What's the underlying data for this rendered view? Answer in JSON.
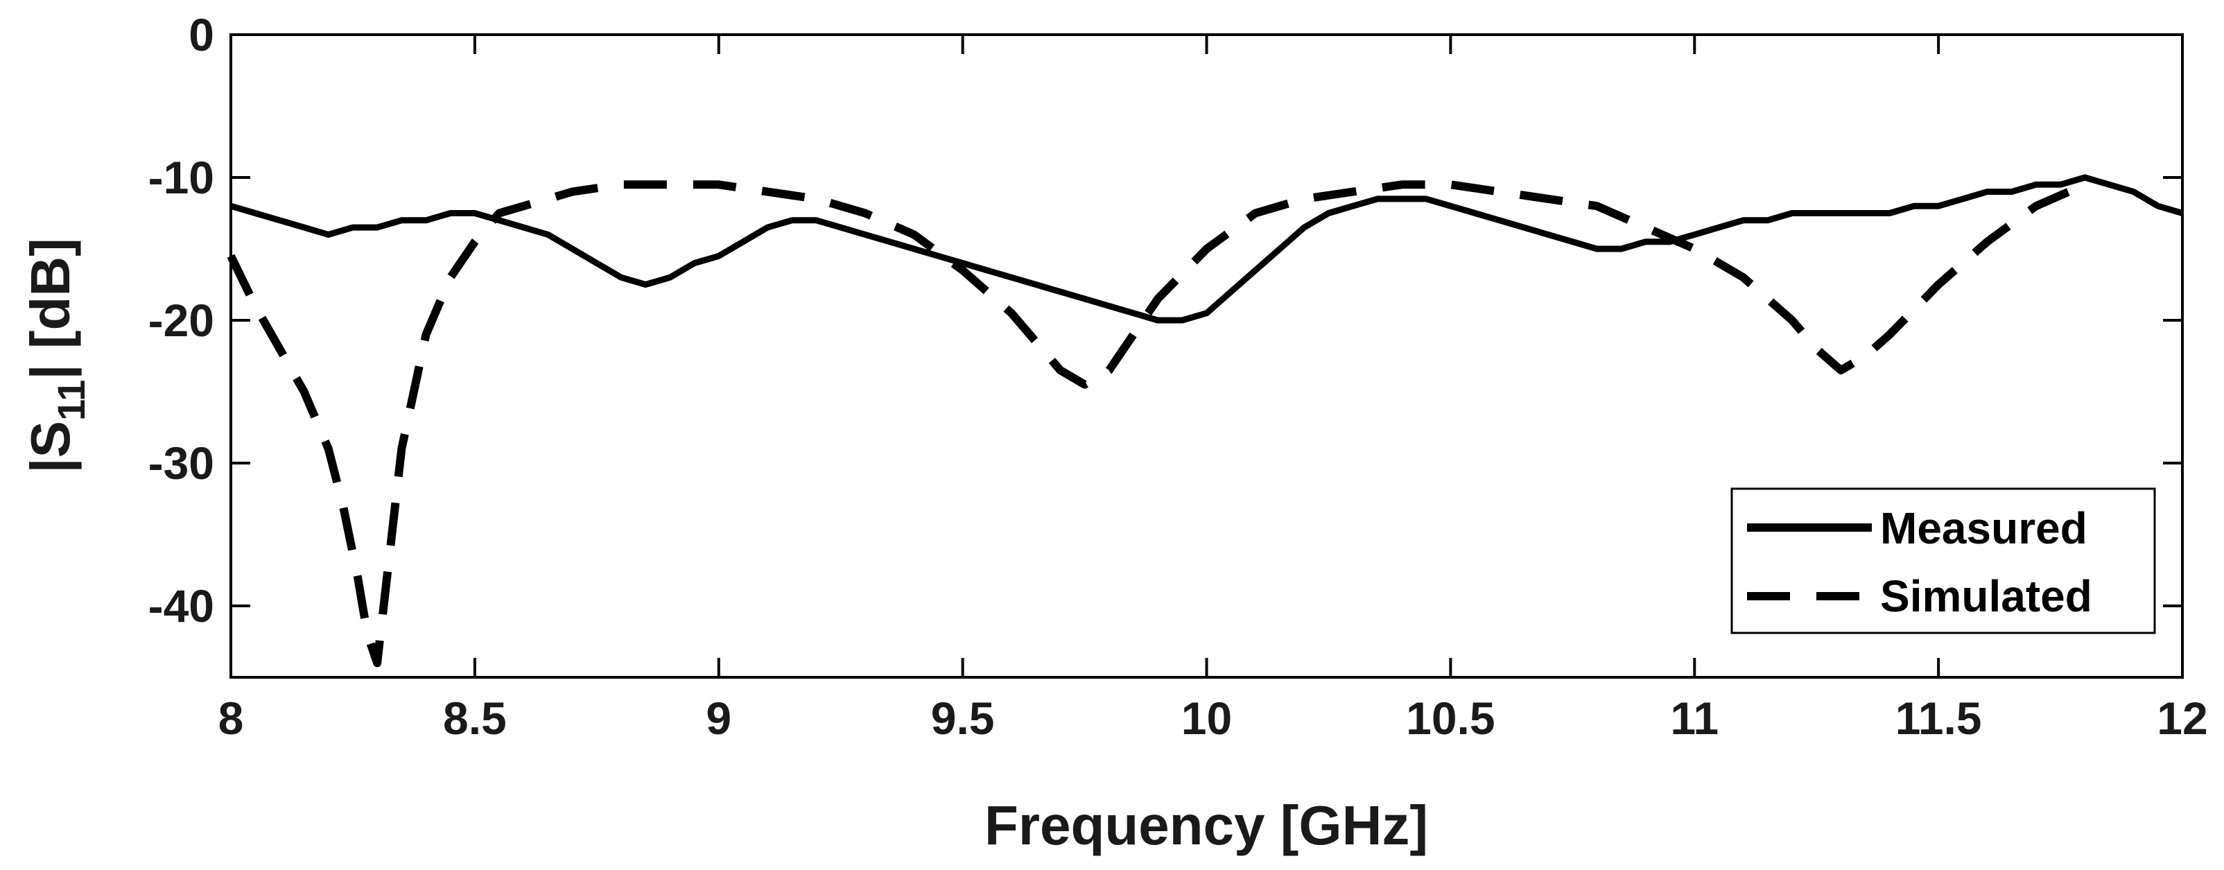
{
  "chart_data": {
    "type": "line",
    "xlabel": "Frequency [GHz]",
    "ylabel": {
      "prefix": "|S",
      "subscript": "11",
      "suffix": "| [dB]"
    },
    "xlim": [
      8,
      12
    ],
    "ylim": [
      -45,
      0
    ],
    "xticks": [
      "8",
      "8.5",
      "9",
      "9.5",
      "10",
      "10.5",
      "11",
      "11.5",
      "12"
    ],
    "yticks": [
      "0",
      "-10",
      "-20",
      "-30",
      "-40"
    ],
    "grid": false,
    "legend": {
      "position": "bottom-right"
    },
    "line_color": "#000000",
    "series": [
      {
        "name": "Measured",
        "style": "solid",
        "x": [
          8.0,
          8.05,
          8.1,
          8.15,
          8.2,
          8.25,
          8.3,
          8.35,
          8.4,
          8.45,
          8.5,
          8.55,
          8.6,
          8.65,
          8.7,
          8.75,
          8.8,
          8.85,
          8.9,
          8.95,
          9.0,
          9.05,
          9.1,
          9.15,
          9.2,
          9.25,
          9.3,
          9.35,
          9.4,
          9.45,
          9.5,
          9.55,
          9.6,
          9.65,
          9.7,
          9.75,
          9.8,
          9.85,
          9.9,
          9.95,
          10.0,
          10.05,
          10.1,
          10.15,
          10.2,
          10.25,
          10.3,
          10.35,
          10.4,
          10.45,
          10.5,
          10.55,
          10.6,
          10.65,
          10.7,
          10.75,
          10.8,
          10.85,
          10.9,
          10.95,
          11.0,
          11.05,
          11.1,
          11.15,
          11.2,
          11.25,
          11.3,
          11.35,
          11.4,
          11.45,
          11.5,
          11.55,
          11.6,
          11.65,
          11.7,
          11.75,
          11.8,
          11.85,
          11.9,
          11.95,
          12.0
        ],
        "y": [
          -12,
          -12.5,
          -13,
          -13.5,
          -14,
          -13.5,
          -13.5,
          -13,
          -13,
          -12.5,
          -12.5,
          -13,
          -13.5,
          -14,
          -15,
          -16,
          -17,
          -17.5,
          -17,
          -16,
          -15.5,
          -14.5,
          -13.5,
          -13,
          -13,
          -13.5,
          -14,
          -14.5,
          -15,
          -15.5,
          -16,
          -16.5,
          -17,
          -17.5,
          -18,
          -18.5,
          -19,
          -19.5,
          -20,
          -20,
          -19.5,
          -18,
          -16.5,
          -15,
          -13.5,
          -12.5,
          -12,
          -11.5,
          -11.5,
          -11.5,
          -12,
          -12.5,
          -13,
          -13.5,
          -14,
          -14.5,
          -15,
          -15,
          -14.5,
          -14.5,
          -14,
          -13.5,
          -13,
          -13,
          -12.5,
          -12.5,
          -12.5,
          -12.5,
          -12.5,
          -12,
          -12,
          -11.5,
          -11,
          -11,
          -10.5,
          -10.5,
          -10,
          -10.5,
          -11,
          -12,
          -12.5
        ]
      },
      {
        "name": "Simulated",
        "style": "dashed",
        "x": [
          8.0,
          8.05,
          8.1,
          8.15,
          8.2,
          8.23,
          8.26,
          8.28,
          8.3,
          8.32,
          8.35,
          8.4,
          8.45,
          8.5,
          8.55,
          8.6,
          8.7,
          8.8,
          8.9,
          9.0,
          9.1,
          9.2,
          9.3,
          9.4,
          9.5,
          9.6,
          9.65,
          9.7,
          9.75,
          9.8,
          9.85,
          9.9,
          10.0,
          10.1,
          10.2,
          10.3,
          10.4,
          10.5,
          10.6,
          10.7,
          10.8,
          10.9,
          11.0,
          11.1,
          11.2,
          11.25,
          11.3,
          11.35,
          11.4,
          11.5,
          11.6,
          11.7,
          11.8
        ],
        "y": [
          -15.5,
          -19,
          -22,
          -25,
          -29,
          -33,
          -38,
          -42,
          -44,
          -38,
          -29,
          -21,
          -17,
          -14.5,
          -12.5,
          -12,
          -11,
          -10.5,
          -10.5,
          -10.5,
          -11,
          -11.5,
          -12.5,
          -14,
          -16.5,
          -19.5,
          -21.5,
          -23.5,
          -24.5,
          -23.5,
          -21,
          -18.5,
          -15,
          -12.5,
          -11.5,
          -11,
          -10.5,
          -10.5,
          -11,
          -11.5,
          -12,
          -13.5,
          -15,
          -17,
          -20,
          -22,
          -23.5,
          -22.5,
          -21,
          -17.5,
          -14.5,
          -12,
          -10.5
        ]
      }
    ]
  }
}
